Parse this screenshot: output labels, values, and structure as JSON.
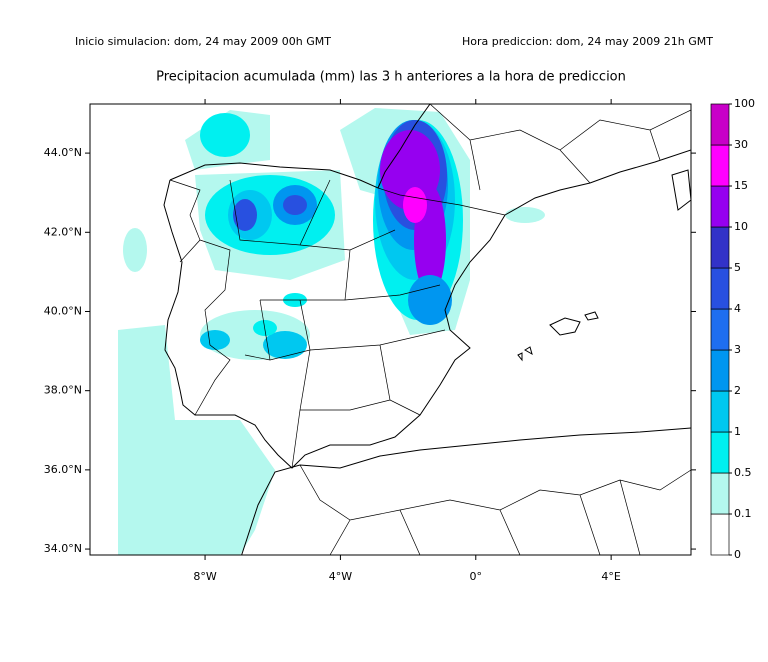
{
  "header": {
    "left": "Inicio simulacion: dom, 24 may 2009 00h GMT",
    "right": "Hora prediccion: dom, 24 may 2009 21h GMT"
  },
  "title": "Precipitacion acumulada (mm) las 3 h anteriores a la hora de prediccion",
  "map": {
    "xlim": [
      -11.4,
      6.36
    ],
    "ylim": [
      33.85,
      45.24
    ],
    "xticks": [
      {
        "value": -8,
        "label": "8°W"
      },
      {
        "value": -4,
        "label": "4°W"
      },
      {
        "value": 0,
        "label": "0°"
      },
      {
        "value": 4,
        "label": "4°E"
      }
    ],
    "yticks": [
      {
        "value": 34,
        "label": "34.0°N"
      },
      {
        "value": 36,
        "label": "36.0°N"
      },
      {
        "value": 38,
        "label": "38.0°N"
      },
      {
        "value": 40,
        "label": "40.0°N"
      },
      {
        "value": 42,
        "label": "42.0°N"
      },
      {
        "value": 44,
        "label": "44.0°N"
      }
    ]
  },
  "colorbar": {
    "levels": [
      0,
      0.1,
      0.5,
      1,
      2,
      3,
      4,
      5,
      10,
      15,
      30,
      100
    ],
    "colors": [
      "#ffffff",
      "#b4f8ee",
      "#00f0f0",
      "#00c8f0",
      "#0096f0",
      "#1e6ef0",
      "#2850e0",
      "#3232c8",
      "#9600f0",
      "#ff00ff",
      "#c800c8",
      "#640064"
    ]
  }
}
